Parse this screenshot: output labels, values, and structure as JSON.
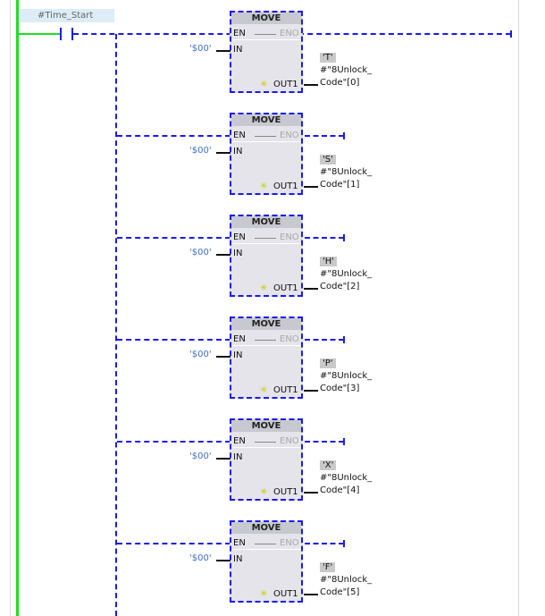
{
  "rung": {
    "contact_tag": "#Time_Start"
  },
  "blocks": [
    {
      "title": "MOVE",
      "en": "EN",
      "eno": "ENO",
      "in_label": "IN",
      "out_label": "OUT1",
      "in_value": "'$00'",
      "out_value": "'T'",
      "out_var_line1": "#\"8Unlock_",
      "out_var_line2": "Code\"[0]"
    },
    {
      "title": "MOVE",
      "en": "EN",
      "eno": "ENO",
      "in_label": "IN",
      "out_label": "OUT1",
      "in_value": "'$00'",
      "out_value": "'S'",
      "out_var_line1": "#\"8Unlock_",
      "out_var_line2": "Code\"[1]"
    },
    {
      "title": "MOVE",
      "en": "EN",
      "eno": "ENO",
      "in_label": "IN",
      "out_label": "OUT1",
      "in_value": "'$00'",
      "out_value": "'H'",
      "out_var_line1": "#\"8Unlock_",
      "out_var_line2": "Code\"[2]"
    },
    {
      "title": "MOVE",
      "en": "EN",
      "eno": "ENO",
      "in_label": "IN",
      "out_label": "OUT1",
      "in_value": "'$00'",
      "out_value": "'P'",
      "out_var_line1": "#\"8Unlock_",
      "out_var_line2": "Code\"[3]"
    },
    {
      "title": "MOVE",
      "en": "EN",
      "eno": "ENO",
      "in_label": "IN",
      "out_label": "OUT1",
      "in_value": "'$00'",
      "out_value": "'X'",
      "out_var_line1": "#\"8Unlock_",
      "out_var_line2": "Code\"[4]"
    },
    {
      "title": "MOVE",
      "en": "EN",
      "eno": "ENO",
      "in_label": "IN",
      "out_label": "OUT1",
      "in_value": "'$00'",
      "out_value": "'F'",
      "out_var_line1": "#\"8Unlock_",
      "out_var_line2": "Code\"[5]"
    }
  ],
  "colors": {
    "power_rail": "#22dd22",
    "rlo_wire": "#1a1aee"
  }
}
